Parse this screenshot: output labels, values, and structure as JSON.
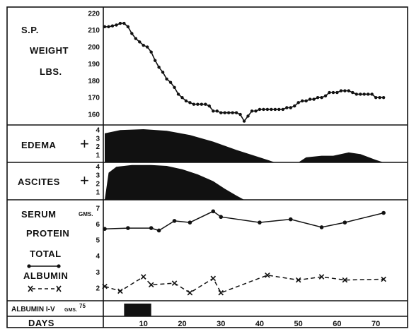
{
  "chart_data": {
    "type": "line",
    "panels": {
      "weight": {
        "labels": [
          "S.P.",
          "WEIGHT",
          "LBS."
        ],
        "yticks": [
          220,
          210,
          200,
          190,
          180,
          170,
          160
        ],
        "ylim": [
          155,
          222
        ],
        "points": [
          [
            0,
            212
          ],
          [
            1,
            212
          ],
          [
            2,
            212.5
          ],
          [
            3,
            213
          ],
          [
            4,
            214
          ],
          [
            5,
            214
          ],
          [
            6,
            212
          ],
          [
            7,
            208
          ],
          [
            8,
            205
          ],
          [
            9,
            203
          ],
          [
            10,
            201
          ],
          [
            11,
            200
          ],
          [
            12,
            197
          ],
          [
            13,
            192
          ],
          [
            14,
            188
          ],
          [
            15,
            185
          ],
          [
            16,
            181
          ],
          [
            17,
            179
          ],
          [
            18,
            176
          ],
          [
            19,
            172
          ],
          [
            20,
            170
          ],
          [
            21,
            168
          ],
          [
            22,
            167
          ],
          [
            23,
            166
          ],
          [
            24,
            166
          ],
          [
            25,
            166
          ],
          [
            26,
            166
          ],
          [
            27,
            165
          ],
          [
            28,
            162
          ],
          [
            29,
            162
          ],
          [
            30,
            161
          ],
          [
            31,
            161
          ],
          [
            32,
            161
          ],
          [
            33,
            161
          ],
          [
            34,
            161
          ],
          [
            35,
            160
          ],
          [
            36,
            156
          ],
          [
            37,
            159
          ],
          [
            38,
            162
          ],
          [
            39,
            162
          ],
          [
            40,
            163
          ],
          [
            41,
            163
          ],
          [
            42,
            163
          ],
          [
            43,
            163
          ],
          [
            44,
            163
          ],
          [
            45,
            163
          ],
          [
            46,
            163
          ],
          [
            47,
            164
          ],
          [
            48,
            164
          ],
          [
            49,
            165
          ],
          [
            50,
            167
          ],
          [
            51,
            168
          ],
          [
            52,
            168
          ],
          [
            53,
            169
          ],
          [
            54,
            169
          ],
          [
            55,
            170
          ],
          [
            56,
            170
          ],
          [
            57,
            171
          ],
          [
            58,
            173
          ],
          [
            59,
            173
          ],
          [
            60,
            173
          ],
          [
            61,
            174
          ],
          [
            62,
            174
          ],
          [
            63,
            174
          ],
          [
            64,
            173
          ],
          [
            65,
            172
          ],
          [
            66,
            172
          ],
          [
            67,
            172
          ],
          [
            68,
            172
          ],
          [
            69,
            172
          ],
          [
            70,
            170
          ],
          [
            71,
            170
          ],
          [
            72,
            170
          ]
        ]
      },
      "edema": {
        "label": "EDEMA",
        "plus": "+",
        "yticks": [
          4,
          3,
          2,
          1
        ],
        "ylim": [
          0,
          4
        ],
        "profile": [
          [
            0,
            3.5
          ],
          [
            4,
            3.9
          ],
          [
            10,
            4.0
          ],
          [
            16,
            3.8
          ],
          [
            22,
            3.3
          ],
          [
            28,
            2.5
          ],
          [
            34,
            1.5
          ],
          [
            40,
            0.6
          ],
          [
            44,
            0
          ],
          [
            50,
            0
          ],
          [
            52,
            0.6
          ],
          [
            56,
            0.8
          ],
          [
            59,
            0.8
          ],
          [
            63,
            1.2
          ],
          [
            66,
            1.0
          ],
          [
            70,
            0.3
          ],
          [
            72,
            0
          ]
        ]
      },
      "ascites": {
        "label": "ASCITES",
        "plus": "+",
        "yticks": [
          4,
          3,
          2,
          1
        ],
        "ylim": [
          0,
          4
        ],
        "profile": [
          [
            0,
            0
          ],
          [
            1,
            3.2
          ],
          [
            3,
            3.9
          ],
          [
            7,
            4.1
          ],
          [
            12,
            4.1
          ],
          [
            16,
            4.0
          ],
          [
            20,
            3.6
          ],
          [
            24,
            3.0
          ],
          [
            28,
            2.2
          ],
          [
            31,
            1.3
          ],
          [
            34,
            0.5
          ],
          [
            36,
            0
          ]
        ]
      },
      "protein": {
        "labels": [
          "SERUM",
          "PROTEIN",
          "TOTAL",
          "ALBUMIN"
        ],
        "unit": "GMS.",
        "yticks": [
          7,
          6,
          5,
          4,
          3,
          2
        ],
        "ylim": [
          1.2,
          7.3
        ],
        "series": [
          {
            "name": "TOTAL",
            "style": "solid-dot",
            "points": [
              [
                0,
                5.7
              ],
              [
                6,
                5.75
              ],
              [
                12,
                5.75
              ],
              [
                14,
                5.6
              ],
              [
                18,
                6.2
              ],
              [
                22,
                6.1
              ],
              [
                28,
                6.8
              ],
              [
                30,
                6.45
              ],
              [
                40,
                6.1
              ],
              [
                48,
                6.3
              ],
              [
                56,
                5.8
              ],
              [
                62,
                6.1
              ],
              [
                72,
                6.7
              ]
            ]
          },
          {
            "name": "ALBUMIN",
            "style": "dashed-x",
            "points": [
              [
                0,
                2.1
              ],
              [
                4,
                1.8
              ],
              [
                10,
                2.7
              ],
              [
                12,
                2.2
              ],
              [
                18,
                2.3
              ],
              [
                22,
                1.7
              ],
              [
                28,
                2.6
              ],
              [
                30,
                1.7
              ],
              [
                42,
                2.8
              ],
              [
                50,
                2.5
              ],
              [
                56,
                2.7
              ],
              [
                62,
                2.5
              ],
              [
                72,
                2.55
              ]
            ]
          }
        ]
      },
      "albumin_iv": {
        "label": "ALBUMIN I-V",
        "unit": "GMS.",
        "value_label": "75",
        "start_day": 5,
        "end_day": 12
      }
    },
    "x_axis": {
      "label": "DAYS",
      "ticks": [
        10,
        20,
        30,
        40,
        50,
        60,
        70
      ],
      "xlim": [
        0,
        76
      ]
    }
  }
}
